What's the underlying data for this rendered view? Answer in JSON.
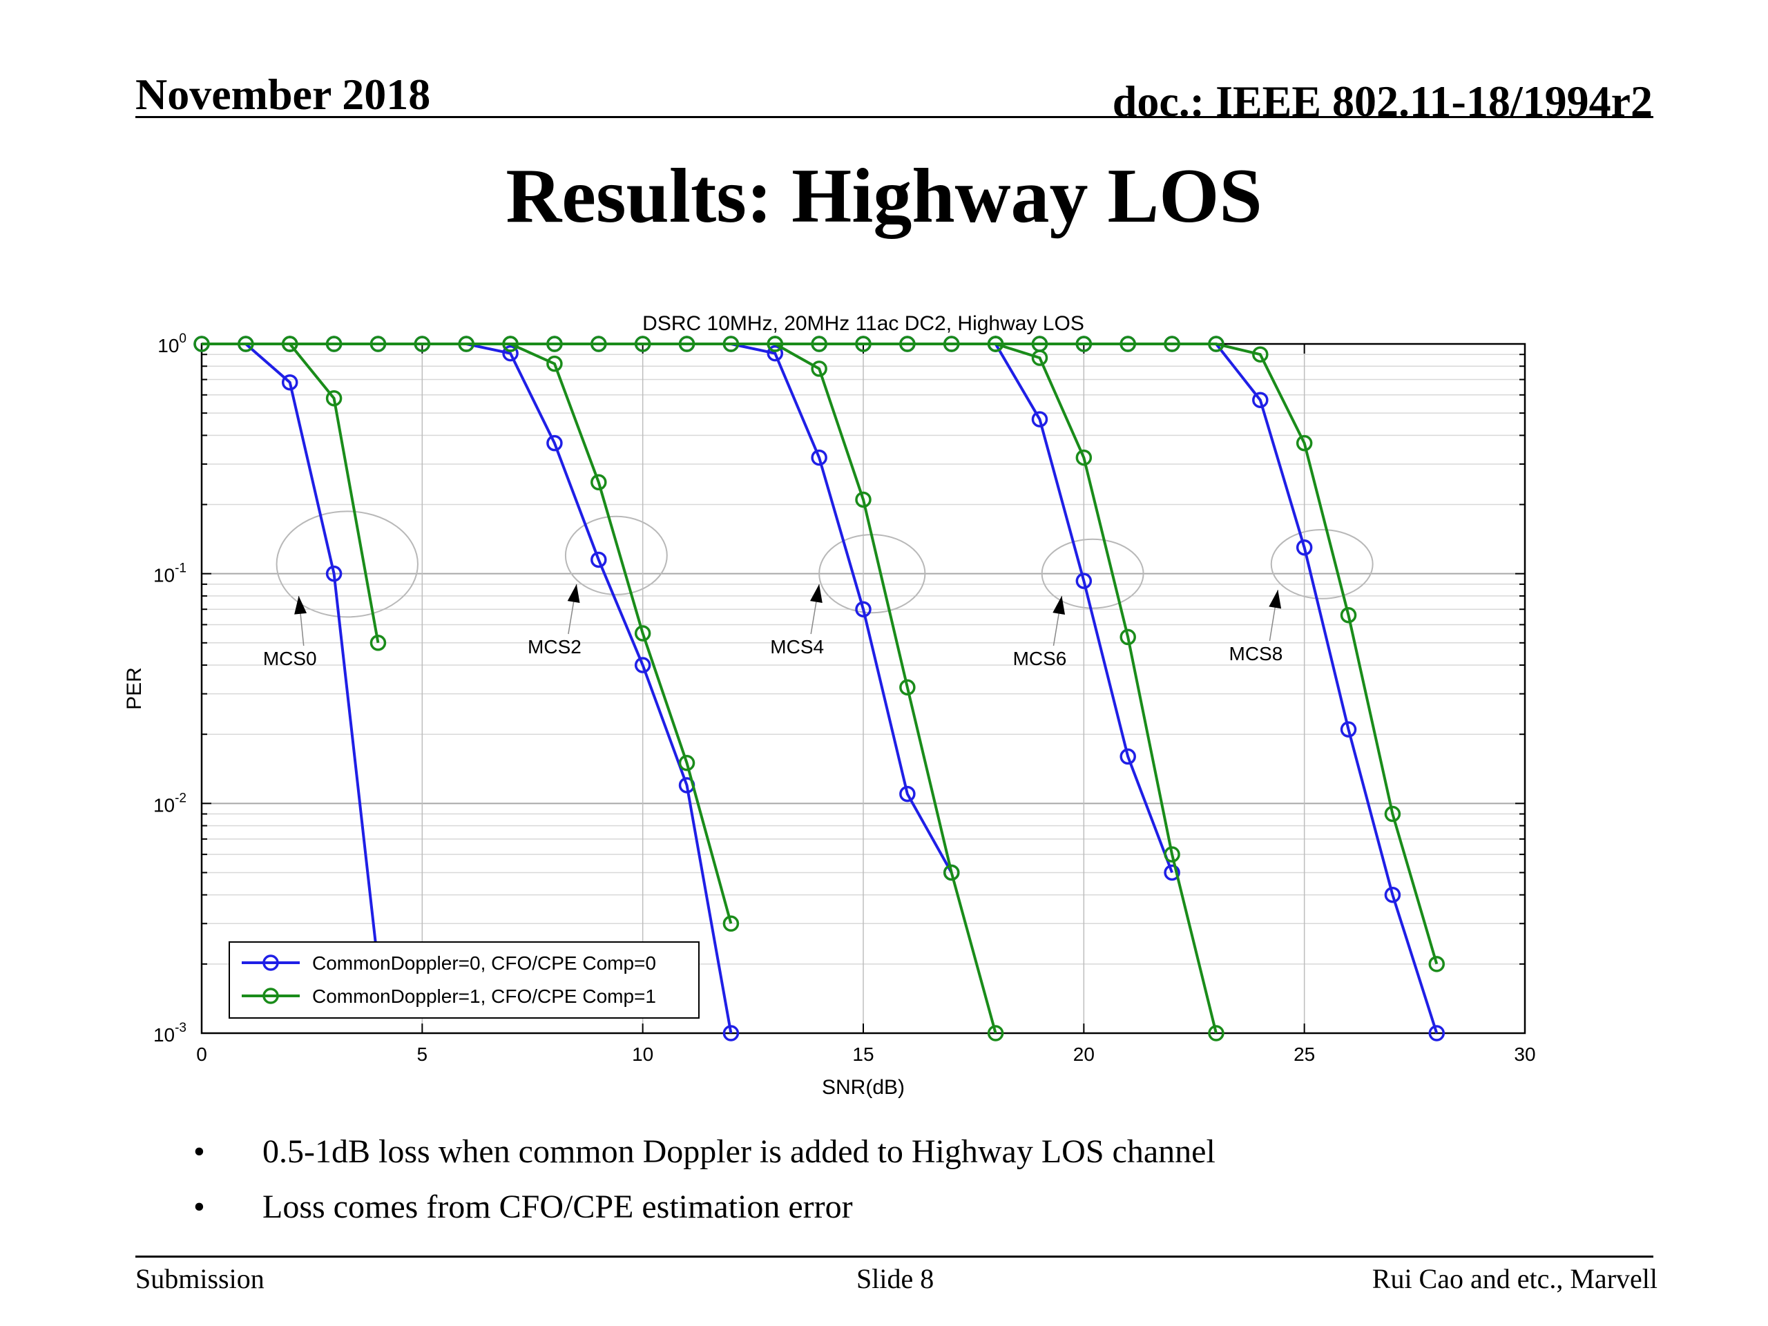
{
  "header": {
    "date": "November 2018",
    "doc": "doc.: IEEE 802.11-18/1994r2"
  },
  "slide_title": "Results: Highway LOS",
  "bullets": [
    "0.5-1dB loss when common Doppler is added to Highway LOS channel",
    "Loss comes from CFO/CPE estimation error"
  ],
  "bullet_symbol": "•",
  "footer": {
    "left": "Submission",
    "center": "Slide 8",
    "right": "Rui Cao and etc., Marvell"
  },
  "chart_data": {
    "type": "line",
    "title": "DSRC 10MHz, 20MHz 11ac DC2, Highway LOS",
    "xlabel": "SNR(dB)",
    "ylabel": "PER",
    "xlim": [
      0,
      30
    ],
    "ylim": [
      0.001,
      1
    ],
    "yscale": "log",
    "grid": true,
    "legend_position": "bottom-left",
    "x_ticks": [
      0,
      5,
      10,
      15,
      20,
      25,
      30
    ],
    "y_ticks": [
      {
        "value": 1,
        "base": "10",
        "exp": "0"
      },
      {
        "value": 0.1,
        "base": "10",
        "exp": "-1"
      },
      {
        "value": 0.01,
        "base": "10",
        "exp": "-2"
      },
      {
        "value": 0.001,
        "base": "10",
        "exp": "-3"
      }
    ],
    "series": [
      {
        "name": "CommonDoppler=0, CFO/CPE Comp=0",
        "color": "#1f1fe6",
        "curves": [
          {
            "points": [
              [
                0,
                1
              ],
              [
                1,
                1
              ],
              [
                2,
                0.68
              ],
              [
                3,
                0.1
              ]
            ],
            "tail_to": [
              3.95,
              0.0024
            ]
          },
          {
            "points": [
              [
                2,
                1
              ],
              [
                3,
                1
              ],
              [
                4,
                1
              ],
              [
                5,
                1
              ],
              [
                6,
                1
              ],
              [
                7,
                0.91
              ],
              [
                8,
                0.37
              ],
              [
                9,
                0.115
              ],
              [
                10,
                0.04
              ],
              [
                11,
                0.012
              ],
              [
                12,
                0.001
              ]
            ]
          },
          {
            "points": [
              [
                7,
                1
              ],
              [
                8,
                1
              ],
              [
                9,
                1
              ],
              [
                10,
                1
              ],
              [
                11,
                1
              ],
              [
                12,
                1
              ],
              [
                13,
                0.91
              ],
              [
                14,
                0.32
              ],
              [
                15,
                0.07
              ],
              [
                16,
                0.011
              ],
              [
                17,
                0.005
              ]
            ]
          },
          {
            "points": [
              [
                13,
                1
              ],
              [
                14,
                1
              ],
              [
                15,
                1
              ],
              [
                16,
                1
              ],
              [
                17,
                1
              ],
              [
                18,
                1
              ],
              [
                19,
                0.47
              ],
              [
                20,
                0.093
              ],
              [
                21,
                0.016
              ],
              [
                22,
                0.005
              ]
            ]
          },
          {
            "points": [
              [
                18,
                1
              ],
              [
                19,
                1
              ],
              [
                20,
                1
              ],
              [
                21,
                1
              ],
              [
                22,
                1
              ],
              [
                23,
                1
              ],
              [
                24,
                0.57
              ],
              [
                25,
                0.13
              ],
              [
                26,
                0.021
              ],
              [
                27,
                0.004
              ],
              [
                28,
                0.001
              ]
            ]
          }
        ]
      },
      {
        "name": "CommonDoppler=1, CFO/CPE Comp=1",
        "color": "#1a8c1a",
        "curves": [
          {
            "points": [
              [
                0,
                1
              ],
              [
                1,
                1
              ],
              [
                2,
                1
              ],
              [
                3,
                0.58
              ],
              [
                4,
                0.05
              ]
            ]
          },
          {
            "points": [
              [
                2,
                1
              ],
              [
                3,
                1
              ],
              [
                4,
                1
              ],
              [
                5,
                1
              ],
              [
                6,
                1
              ],
              [
                7,
                1
              ],
              [
                8,
                0.82
              ],
              [
                9,
                0.25
              ],
              [
                10,
                0.055
              ],
              [
                11,
                0.015
              ],
              [
                12,
                0.003
              ]
            ]
          },
          {
            "points": [
              [
                7,
                1
              ],
              [
                8,
                1
              ],
              [
                9,
                1
              ],
              [
                10,
                1
              ],
              [
                11,
                1
              ],
              [
                12,
                1
              ],
              [
                13,
                1
              ],
              [
                14,
                0.78
              ],
              [
                15,
                0.21
              ],
              [
                16,
                0.032
              ],
              [
                17,
                0.005
              ],
              [
                18,
                0.001
              ]
            ]
          },
          {
            "points": [
              [
                13,
                1
              ],
              [
                14,
                1
              ],
              [
                15,
                1
              ],
              [
                16,
                1
              ],
              [
                17,
                1
              ],
              [
                18,
                1
              ],
              [
                19,
                0.87
              ],
              [
                20,
                0.32
              ],
              [
                21,
                0.053
              ],
              [
                22,
                0.006
              ],
              [
                23,
                0.001
              ]
            ]
          },
          {
            "points": [
              [
                18,
                1
              ],
              [
                19,
                1
              ],
              [
                20,
                1
              ],
              [
                21,
                1
              ],
              [
                22,
                1
              ],
              [
                23,
                1
              ],
              [
                24,
                0.9
              ],
              [
                25,
                0.37
              ],
              [
                26,
                0.066
              ],
              [
                27,
                0.009
              ],
              [
                28,
                0.002
              ]
            ]
          }
        ]
      }
    ],
    "annotations": [
      {
        "label": "MCS0",
        "label_at": [
          2.0,
          0.04
        ],
        "arrow_to": [
          2.2,
          0.08
        ],
        "ellipse_center": [
          3.3,
          0.11
        ],
        "ellipse_rx": 1.6,
        "ellipse_rdec": 0.23
      },
      {
        "label": "MCS2",
        "label_at": [
          8.0,
          0.045
        ],
        "arrow_to": [
          8.5,
          0.09
        ],
        "ellipse_center": [
          9.4,
          0.12
        ],
        "ellipse_rx": 1.15,
        "ellipse_rdec": 0.17
      },
      {
        "label": "MCS4",
        "label_at": [
          13.5,
          0.045
        ],
        "arrow_to": [
          14.0,
          0.09
        ],
        "ellipse_center": [
          15.2,
          0.1
        ],
        "ellipse_rx": 1.2,
        "ellipse_rdec": 0.17
      },
      {
        "label": "MCS6",
        "label_at": [
          19.0,
          0.04
        ],
        "arrow_to": [
          19.5,
          0.08
        ],
        "ellipse_center": [
          20.2,
          0.1
        ],
        "ellipse_rx": 1.15,
        "ellipse_rdec": 0.15
      },
      {
        "label": "MCS8",
        "label_at": [
          23.9,
          0.042
        ],
        "arrow_to": [
          24.4,
          0.085
        ],
        "ellipse_center": [
          25.4,
          0.11
        ],
        "ellipse_rx": 1.15,
        "ellipse_rdec": 0.15
      }
    ]
  }
}
